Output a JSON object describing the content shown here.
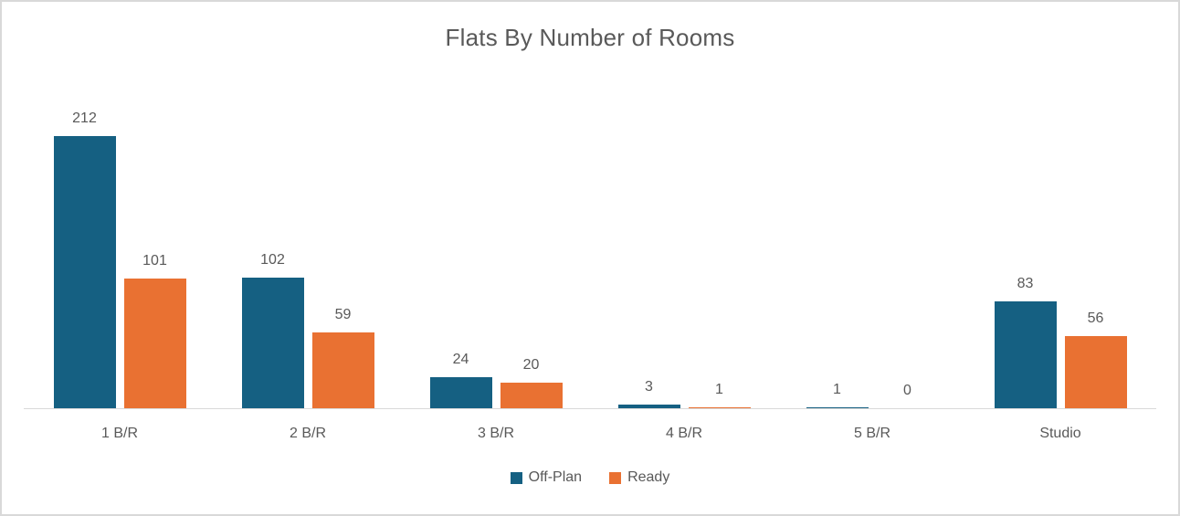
{
  "chart_data": {
    "type": "bar",
    "title": "Flats By Number of Rooms",
    "categories": [
      "1 B/R",
      "2 B/R",
      "3 B/R",
      "4 B/R",
      "5 B/R",
      "Studio"
    ],
    "series": [
      {
        "name": "Off-Plan",
        "color": "#156082",
        "values": [
          212,
          102,
          24,
          3,
          1,
          83
        ]
      },
      {
        "name": "Ready",
        "color": "#E97132",
        "values": [
          101,
          59,
          20,
          1,
          0,
          56
        ]
      }
    ],
    "ylim": [
      0,
      212
    ],
    "grid": false,
    "y_axis_visible": false,
    "data_labels": true,
    "legend_position": "bottom",
    "colors": {
      "text": "#595959",
      "axis_line": "#D9D9D9",
      "frame_border": "#D9D9D9",
      "background": "#FFFFFF"
    }
  }
}
